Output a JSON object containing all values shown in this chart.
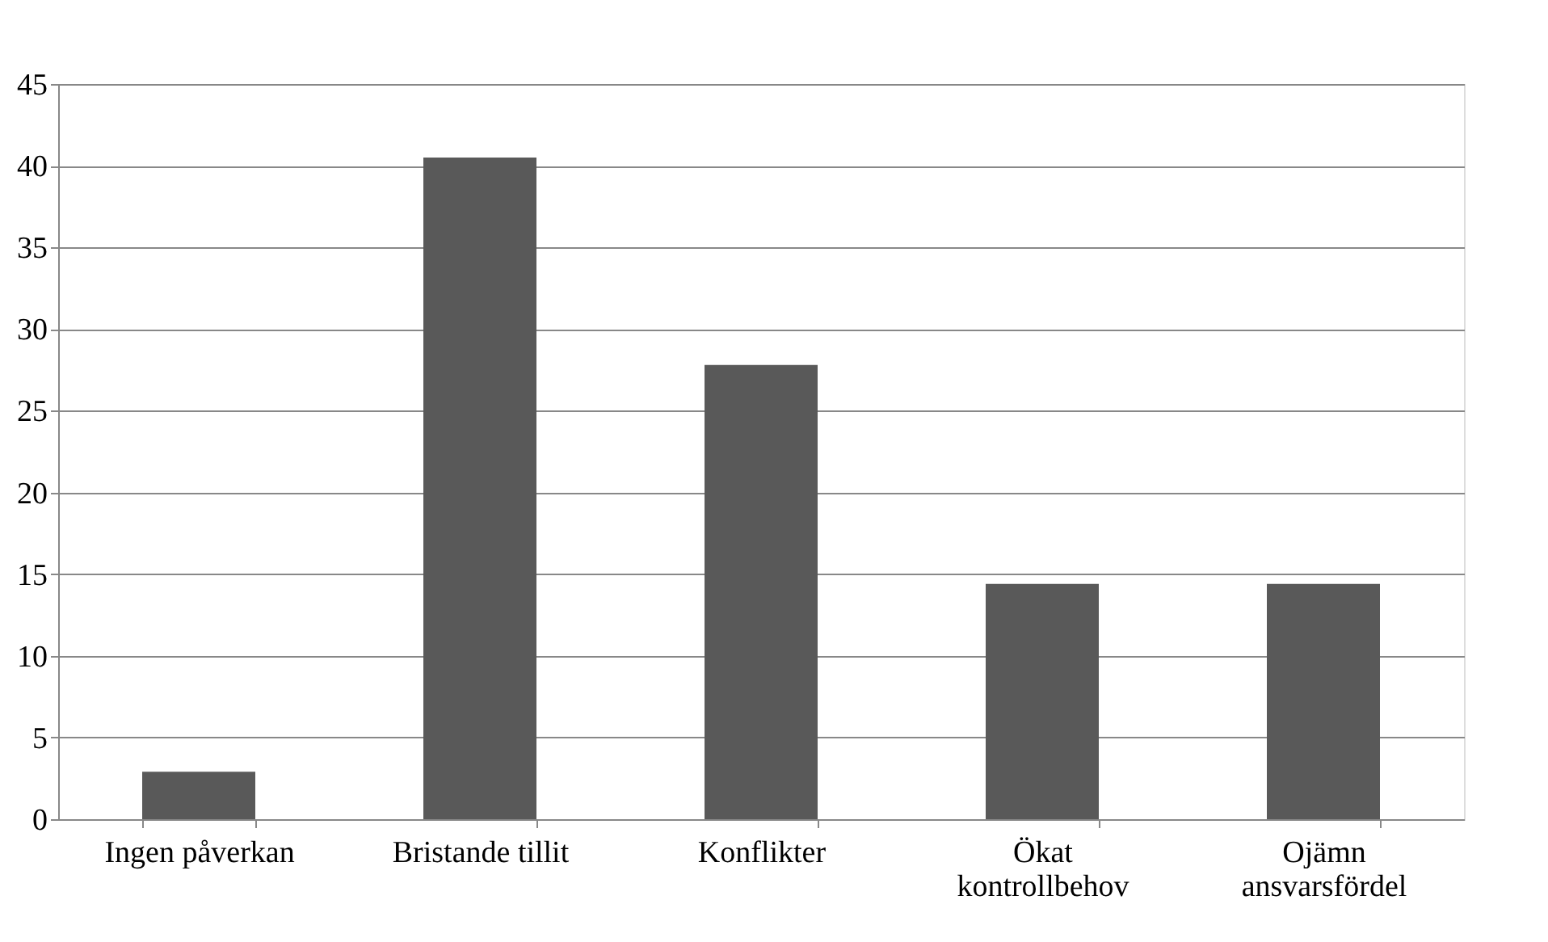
{
  "chart_data": {
    "type": "bar",
    "categories": [
      "Ingen påverkan",
      "Bristande tillit",
      "Konflikter",
      "Ökat kontrollbehov",
      "Ojämn ansvarsfördel"
    ],
    "values": [
      2.9,
      40.5,
      27.8,
      14.4,
      14.4
    ],
    "color": "#595959",
    "ylim": [
      0,
      45
    ],
    "yticks": [
      0,
      5,
      10,
      15,
      20,
      25,
      30,
      35,
      40,
      45
    ],
    "grid": "y"
  }
}
